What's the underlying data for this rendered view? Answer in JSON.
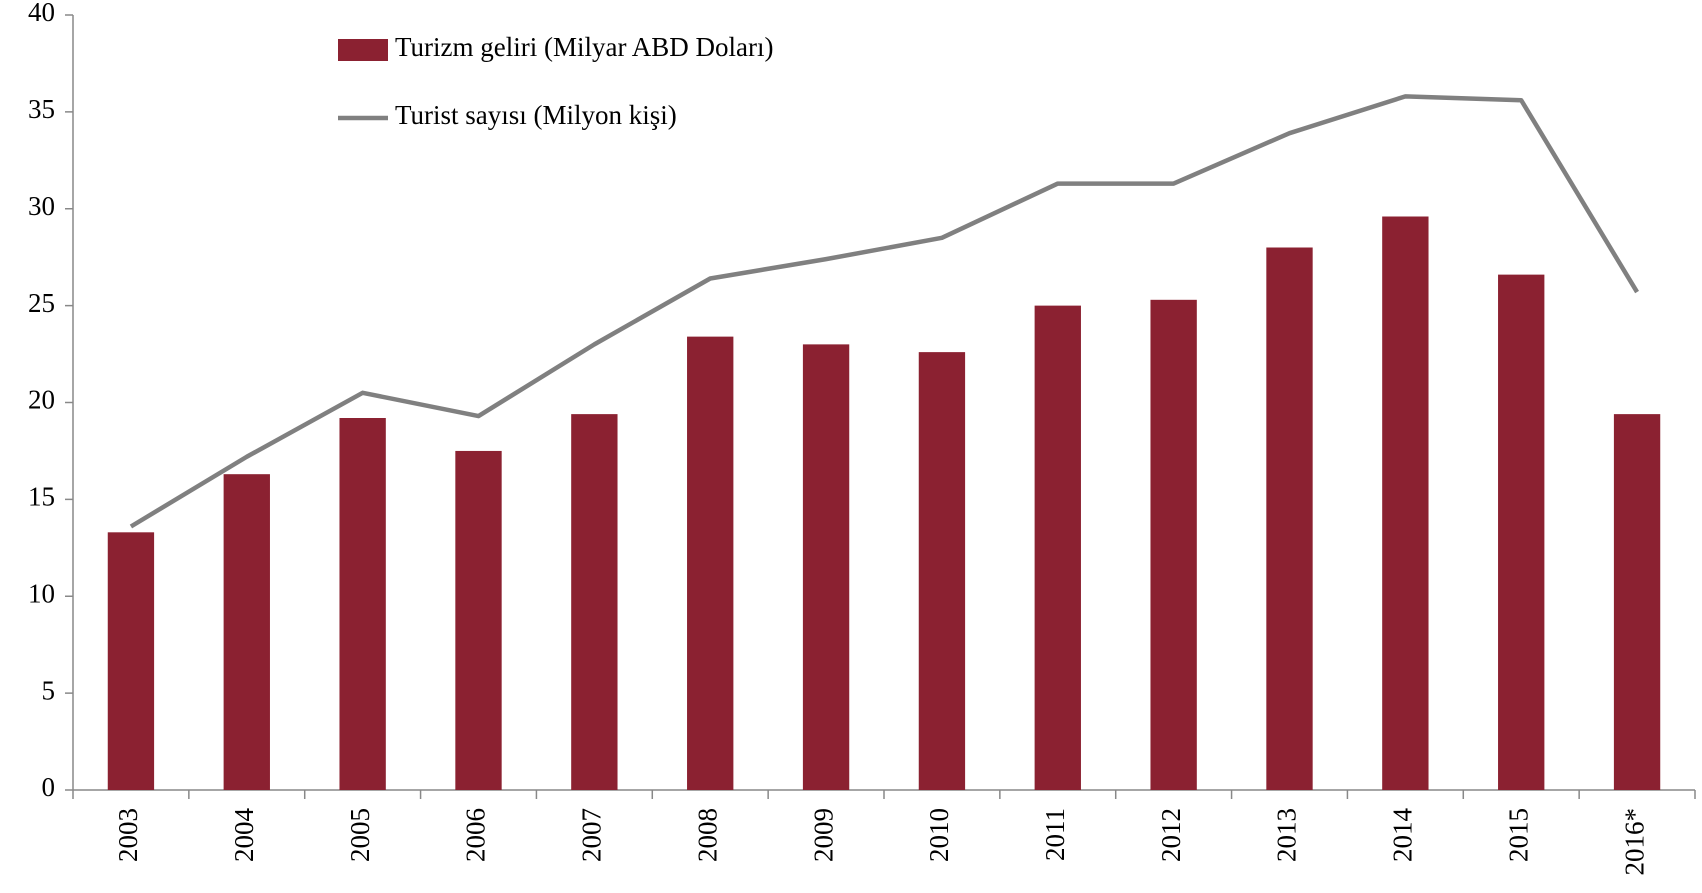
{
  "chart_data": {
    "type": "bar_line",
    "categories": [
      "2003",
      "2004",
      "2005",
      "2006",
      "2007",
      "2008",
      "2009",
      "2010",
      "2011",
      "2012",
      "2013",
      "2014",
      "2015",
      "2016*"
    ],
    "series": [
      {
        "name": "Turizm geliri (Milyar ABD Doları)",
        "type": "bar",
        "color": "#8b2131",
        "values": [
          13.3,
          16.3,
          19.2,
          17.5,
          19.4,
          23.4,
          23.0,
          22.6,
          25.0,
          25.3,
          28.0,
          29.6,
          26.6,
          19.4
        ]
      },
      {
        "name": "Turist sayısı (Milyon kişi)",
        "type": "line",
        "color": "#808080",
        "values": [
          13.6,
          17.2,
          20.5,
          19.3,
          23.0,
          26.4,
          27.4,
          28.5,
          31.3,
          31.3,
          33.9,
          35.8,
          35.6,
          25.7
        ]
      }
    ],
    "ylim": [
      0,
      40
    ],
    "yticks": [
      0,
      5,
      10,
      15,
      20,
      25,
      30,
      35,
      40
    ]
  }
}
